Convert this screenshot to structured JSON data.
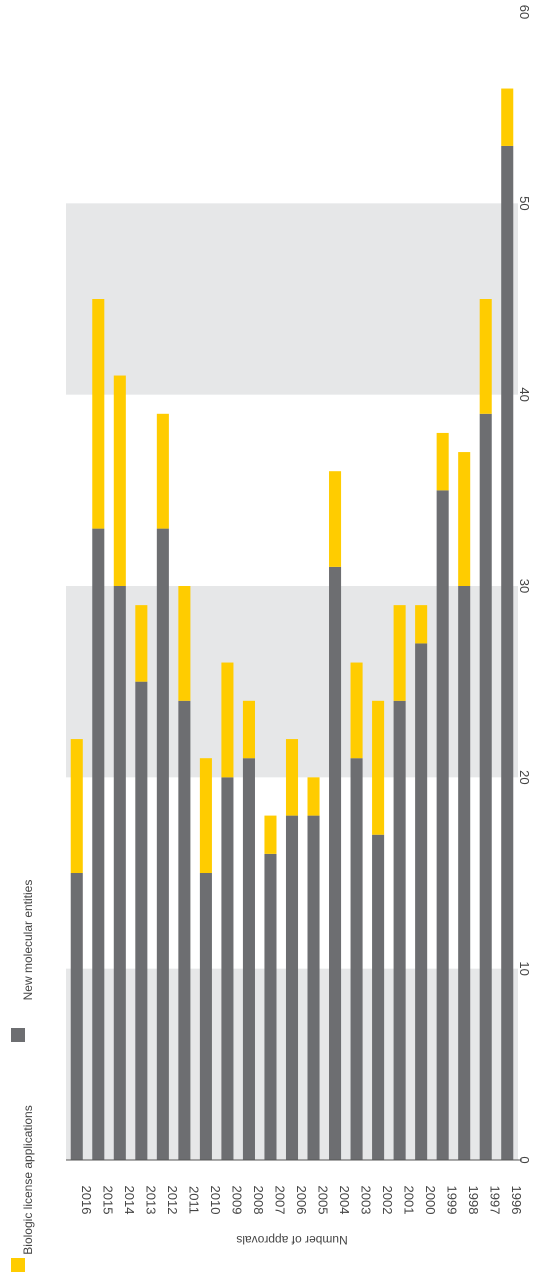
{
  "chart_data": {
    "type": "bar",
    "orientation": "horizontal",
    "stacked": true,
    "categories": [
      "1996",
      "1997",
      "1998",
      "1999",
      "2000",
      "2001",
      "2002",
      "2003",
      "2004",
      "2005",
      "2006",
      "2007",
      "2008",
      "2009",
      "2010",
      "2011",
      "2012",
      "2013",
      "2014",
      "2015",
      "2016"
    ],
    "series": [
      {
        "name": "New molecular entities",
        "color": "#6d6e71",
        "values": [
          53,
          39,
          30,
          35,
          27,
          24,
          17,
          21,
          31,
          18,
          18,
          16,
          21,
          20,
          15,
          24,
          33,
          25,
          30,
          33,
          15
        ]
      },
      {
        "name": "Biologic license applications",
        "color": "#ffcc00",
        "values": [
          3,
          6,
          7,
          3,
          2,
          5,
          7,
          5,
          5,
          2,
          4,
          2,
          3,
          6,
          6,
          6,
          6,
          4,
          11,
          12,
          7
        ]
      }
    ],
    "title": "",
    "xlabel": "Number of approvals",
    "ylabel": "",
    "xlim": [
      0,
      60
    ],
    "xticks": [
      "0",
      "10",
      "20",
      "30",
      "40",
      "50",
      "60"
    ],
    "grid": "alternating vertical bands",
    "legend": {
      "placement": "bottom",
      "entries": [
        "Biologic license applications",
        "New molecular entities"
      ]
    }
  }
}
